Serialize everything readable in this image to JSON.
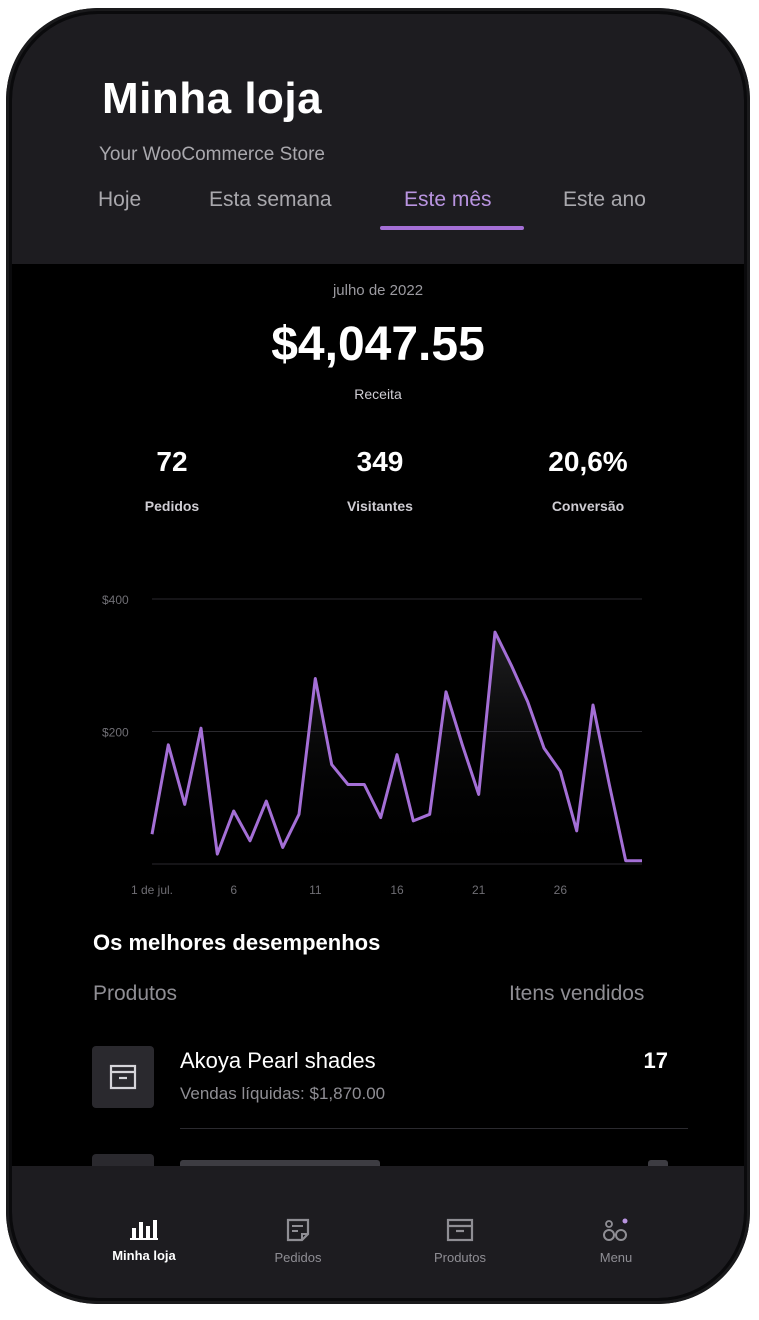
{
  "header": {
    "title": "Minha loja",
    "subtitle": "Your WooCommerce Store"
  },
  "tabs": [
    {
      "label": "Hoje",
      "active": false
    },
    {
      "label": "Esta semana",
      "active": false
    },
    {
      "label": "Este mês",
      "active": true
    },
    {
      "label": "Este ano",
      "active": false
    }
  ],
  "summary": {
    "period": "julho de 2022",
    "revenue": "$4,047.55",
    "revenue_label": "Receita",
    "stats": [
      {
        "value": "72",
        "label": "Pedidos"
      },
      {
        "value": "349",
        "label": "Visitantes"
      },
      {
        "value": "20,6%",
        "label": "Conversão"
      }
    ]
  },
  "chart_data": {
    "type": "area",
    "y_tick_labels": [
      "$400",
      "$200"
    ],
    "x_tick_labels": [
      "1 de jul.",
      "6",
      "11",
      "16",
      "21",
      "26"
    ],
    "ylim": [
      0,
      400
    ],
    "grid": true,
    "line_color": "#a46fd6",
    "x": [
      1,
      2,
      3,
      4,
      5,
      6,
      7,
      8,
      9,
      10,
      11,
      12,
      13,
      14,
      15,
      16,
      17,
      18,
      19,
      20,
      21,
      22,
      23,
      24,
      25,
      26,
      27,
      28,
      29,
      30,
      31
    ],
    "values": [
      45,
      180,
      90,
      205,
      15,
      80,
      35,
      95,
      25,
      75,
      280,
      150,
      120,
      120,
      70,
      165,
      65,
      75,
      260,
      180,
      105,
      350,
      300,
      245,
      175,
      140,
      50,
      240,
      120,
      5,
      5
    ]
  },
  "top_performers": {
    "title": "Os melhores desempenhos",
    "col_products": "Produtos",
    "col_items": "Itens vendidos",
    "items": [
      {
        "name": "Akoya Pearl shades",
        "sales": "Vendas líquidas: $1,870.00",
        "qty": "17"
      }
    ]
  },
  "tabbar": [
    {
      "label": "Minha loja",
      "icon": "bar-chart-icon",
      "active": true
    },
    {
      "label": "Pedidos",
      "icon": "orders-icon",
      "active": false
    },
    {
      "label": "Produtos",
      "icon": "product-box-icon",
      "active": false
    },
    {
      "label": "Menu",
      "icon": "menu-grid-icon",
      "active": false
    }
  ],
  "colors": {
    "accent": "#a46fd6",
    "header_bg": "#1d1c20",
    "background": "#000000"
  }
}
